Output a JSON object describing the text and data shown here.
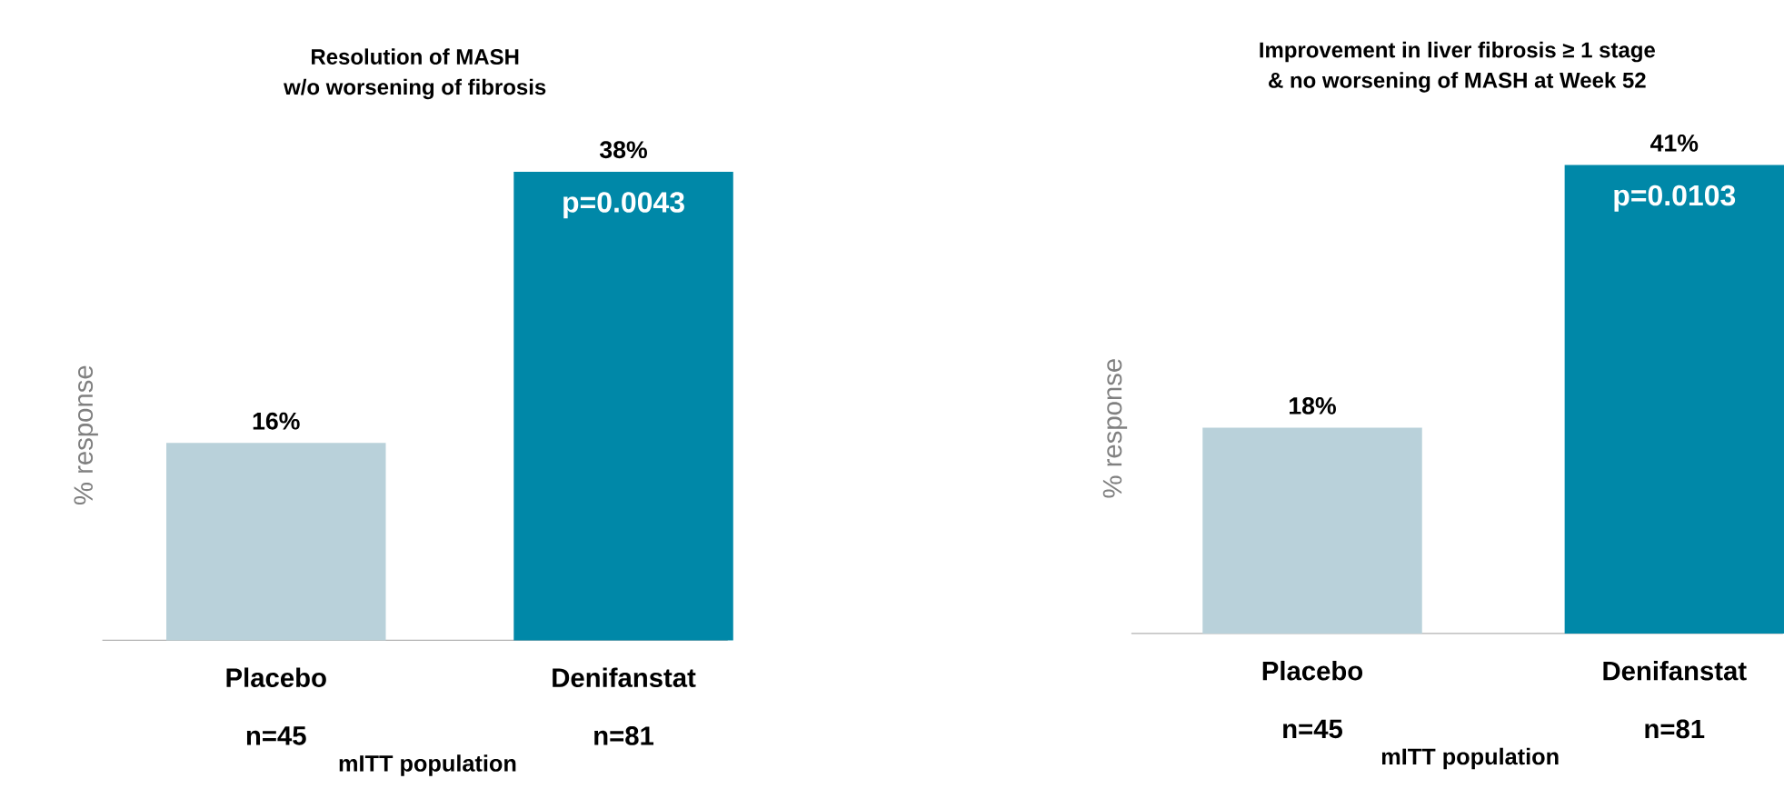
{
  "chart_data": [
    {
      "type": "bar",
      "title": "Resolution of MASH",
      "subtitle": "w/o worsening of fibrosis",
      "ylabel": "% response",
      "categories": [
        "Placebo",
        "Denifanstat"
      ],
      "values": [
        16,
        38
      ],
      "value_labels": [
        "16%",
        "38%"
      ],
      "colors": [
        "#b9d1da",
        "#0088a8"
      ],
      "annotations": [
        {
          "text": "p=0.0043",
          "x": "Denifanstat",
          "y": 38
        },
        "n=45",
        "n=81",
        "mITT population"
      ]
    },
    {
      "type": "bar",
      "title": "Improvement in liver fibrosis ≥ 1 stage",
      "subtitle": "& no worsening of MASH at Week 52",
      "ylabel": "% response",
      "categories": [
        "Placebo",
        "Denifanstat"
      ],
      "values": [
        18,
        41
      ],
      "value_labels": [
        "18%",
        "41%"
      ],
      "colors": [
        "#b9d1da",
        "#0088a8"
      ],
      "annotations": [
        {
          "text": "p=0.0103",
          "x": "Denifanstat",
          "y": 41
        },
        "n=45",
        "n=81",
        "mITT population"
      ]
    }
  ]
}
